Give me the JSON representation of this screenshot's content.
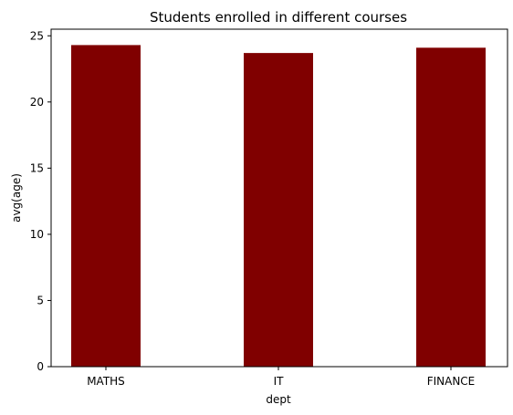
{
  "chart_data": {
    "type": "bar",
    "title": "Students enrolled in different courses",
    "xlabel": "dept",
    "ylabel": "avg(age)",
    "categories": [
      "MATHS",
      "IT",
      "FINANCE"
    ],
    "values": [
      24.3,
      23.7,
      24.1
    ],
    "ylim": [
      0,
      25.5
    ],
    "yticks": [
      0,
      5,
      10,
      15,
      20,
      25
    ],
    "bar_color": "#800000",
    "grid": false,
    "legend": "none"
  }
}
